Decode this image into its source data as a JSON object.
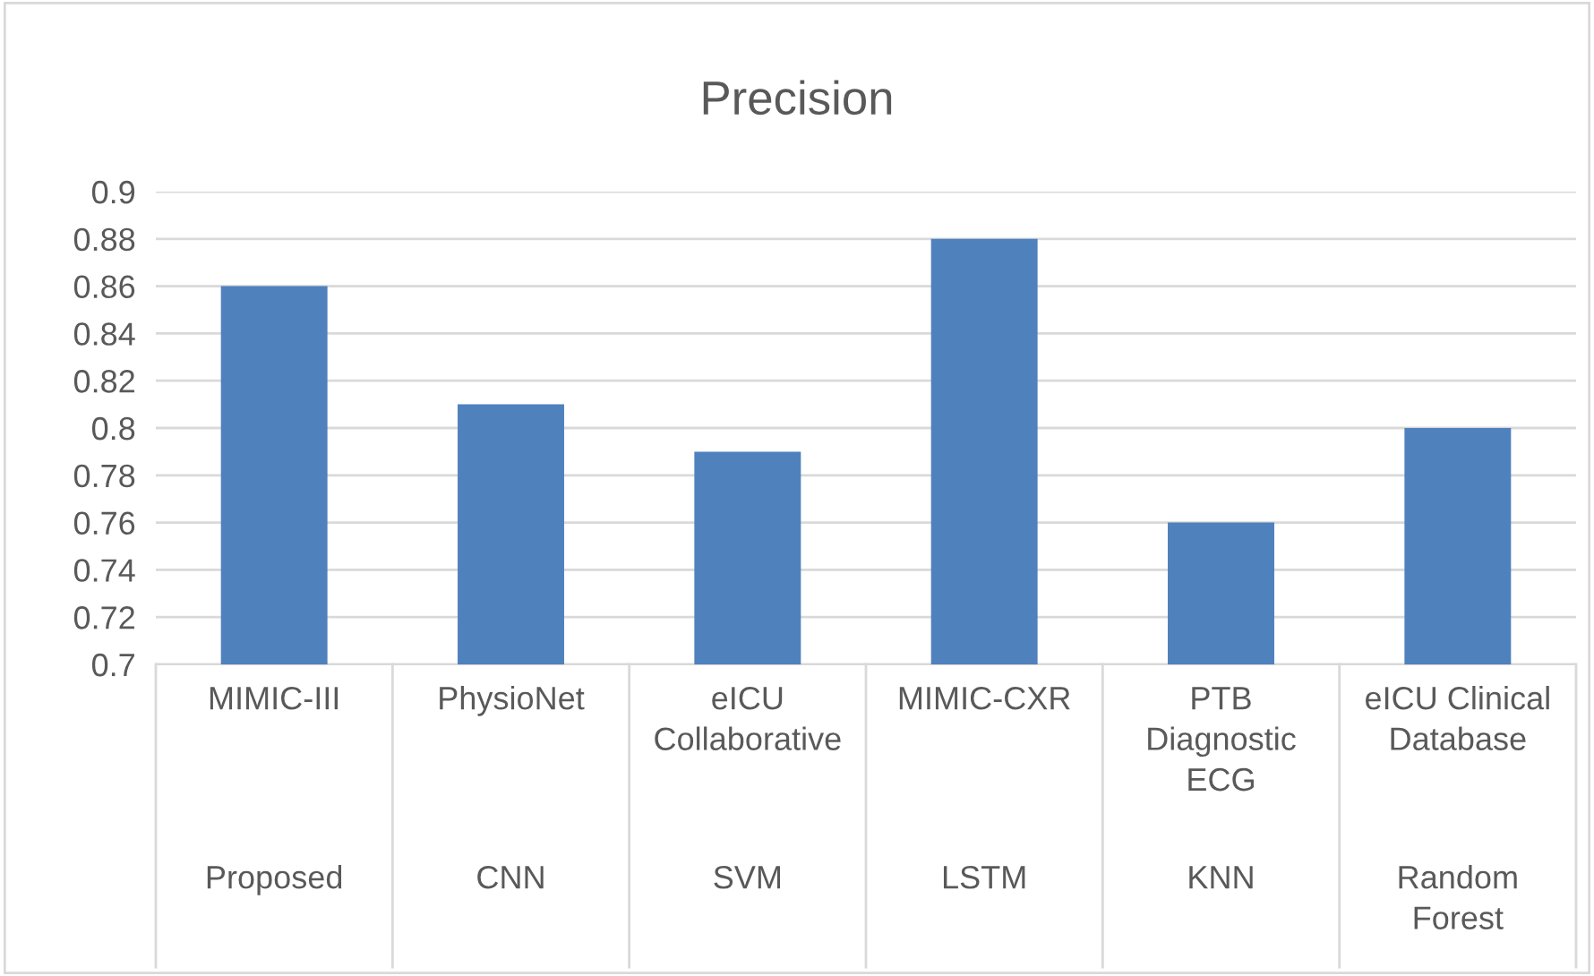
{
  "chart_data": {
    "type": "bar",
    "title": "Precision",
    "categories": [
      "MIMIC-III\n\nProposed",
      "PhysioNet\n\nCNN",
      "eICU\nCollaborative\n\nSVM",
      "MIMIC-CXR\n\nLSTM",
      "PTB\nDiagnostic\nECG\n\nKNN",
      "eICU Clinical\nDatabase\n\nRandom\nForest"
    ],
    "values": [
      0.86,
      0.81,
      0.79,
      0.88,
      0.76,
      0.8
    ],
    "color": "#4f81bd",
    "ylim": [
      0.7,
      0.9
    ],
    "yticks": [
      {
        "value": 0.7,
        "label": "0.7"
      },
      {
        "value": 0.72,
        "label": "0.72"
      },
      {
        "value": 0.74,
        "label": "0.74"
      },
      {
        "value": 0.76,
        "label": "0.76"
      },
      {
        "value": 0.78,
        "label": "0.78"
      },
      {
        "value": 0.8,
        "label": "0.8"
      },
      {
        "value": 0.82,
        "label": "0.82"
      },
      {
        "value": 0.84,
        "label": "0.84"
      },
      {
        "value": 0.86,
        "label": "0.86"
      },
      {
        "value": 0.88,
        "label": "0.88"
      },
      {
        "value": 0.9,
        "label": "0.9"
      }
    ],
    "grid": "y"
  }
}
